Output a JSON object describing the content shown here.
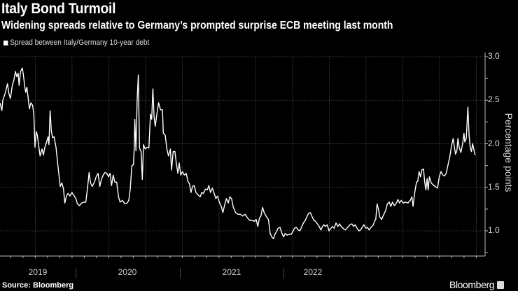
{
  "header": {
    "title": "Italy Bond Turmoil",
    "subtitle": "Widening spreads relative to Germany’s prompted surprise ECB meeting last month"
  },
  "footer": {
    "source": "Source: Bloomberg",
    "brand": "Bloomberg"
  },
  "colors": {
    "background": "#000000",
    "line": "#ffffff",
    "grid": "#444444",
    "text": "#dddddd"
  },
  "chart_data": {
    "type": "line",
    "title": "Italy Bond Turmoil",
    "subtitle": "Widening spreads relative to Germany’s prompted surprise ECB meeting last month",
    "legend": [
      "Spread between Italy/Germany 10-year debt"
    ],
    "legend_placement": "top-left",
    "ylabel": "Percentage points",
    "xlabel": "",
    "ylim": [
      0.71,
      3.0
    ],
    "xlim": [
      2019.26,
      2022.56
    ],
    "y_ticks": [
      3.0,
      2.5,
      2.0,
      1.5,
      1.0
    ],
    "y_tick_labels": [
      "3.0",
      "2.5",
      "2.0",
      "1.5",
      "1.0"
    ],
    "x_tick_labels": [
      "2019",
      "2020",
      "2021",
      "2022"
    ],
    "grid": true,
    "series": [
      {
        "name": "Spread between Italy/Germany 10-year debt",
        "points": [
          [
            2019.26,
            2.47
          ],
          [
            2019.273,
            2.38
          ],
          [
            2019.279,
            2.5
          ],
          [
            2019.295,
            2.58
          ],
          [
            2019.311,
            2.69
          ],
          [
            2019.32,
            2.58
          ],
          [
            2019.331,
            2.52
          ],
          [
            2019.343,
            2.66
          ],
          [
            2019.355,
            2.74
          ],
          [
            2019.365,
            2.83
          ],
          [
            2019.374,
            2.77
          ],
          [
            2019.384,
            2.81
          ],
          [
            2019.39,
            2.67
          ],
          [
            2019.4,
            2.83
          ],
          [
            2019.412,
            2.87
          ],
          [
            2019.419,
            2.79
          ],
          [
            2019.428,
            2.66
          ],
          [
            2019.435,
            2.59
          ],
          [
            2019.443,
            2.65
          ],
          [
            2019.45,
            2.55
          ],
          [
            2019.46,
            2.4
          ],
          [
            2019.47,
            2.47
          ],
          [
            2019.482,
            2.44
          ],
          [
            2019.49,
            2.34
          ],
          [
            2019.498,
            1.96
          ],
          [
            2019.506,
            2.14
          ],
          [
            2019.514,
            2.1
          ],
          [
            2019.522,
            1.99
          ],
          [
            2019.533,
            1.86
          ],
          [
            2019.546,
            1.94
          ],
          [
            2019.555,
            1.87
          ],
          [
            2019.565,
            1.96
          ],
          [
            2019.577,
            2.02
          ],
          [
            2019.587,
            2.08
          ],
          [
            2019.593,
            1.99
          ],
          [
            2019.601,
            2.38
          ],
          [
            2019.609,
            2.15
          ],
          [
            2019.617,
            2.07
          ],
          [
            2019.628,
            2.08
          ],
          [
            2019.641,
            1.96
          ],
          [
            2019.649,
            1.83
          ],
          [
            2019.657,
            1.7
          ],
          [
            2019.67,
            1.51
          ],
          [
            2019.681,
            1.55
          ],
          [
            2019.692,
            1.48
          ],
          [
            2019.701,
            1.32
          ],
          [
            2019.712,
            1.4
          ],
          [
            2019.723,
            1.43
          ],
          [
            2019.736,
            1.4
          ],
          [
            2019.749,
            1.44
          ],
          [
            2019.765,
            1.4
          ],
          [
            2019.776,
            1.37
          ],
          [
            2019.787,
            1.31
          ],
          [
            2019.8,
            1.29
          ],
          [
            2019.816,
            1.32
          ],
          [
            2019.831,
            1.33
          ],
          [
            2019.844,
            1.33
          ],
          [
            2019.855,
            1.49
          ],
          [
            2019.866,
            1.67
          ],
          [
            2019.876,
            1.55
          ],
          [
            2019.887,
            1.51
          ],
          [
            2019.903,
            1.56
          ],
          [
            2019.914,
            1.62
          ],
          [
            2019.927,
            1.66
          ],
          [
            2019.939,
            1.51
          ],
          [
            2019.95,
            1.59
          ],
          [
            2019.962,
            1.64
          ],
          [
            2019.974,
            1.67
          ],
          [
            2019.987,
            1.66
          ],
          [
            2019.998,
            1.62
          ],
          [
            2020.009,
            1.66
          ],
          [
            2020.019,
            1.52
          ],
          [
            2020.03,
            1.64
          ],
          [
            2020.041,
            1.56
          ],
          [
            2020.054,
            1.56
          ],
          [
            2020.066,
            1.39
          ],
          [
            2020.077,
            1.33
          ],
          [
            2020.093,
            1.35
          ],
          [
            2020.109,
            1.31
          ],
          [
            2020.125,
            1.32
          ],
          [
            2020.136,
            1.35
          ],
          [
            2020.146,
            1.48
          ],
          [
            2020.157,
            1.75
          ],
          [
            2020.168,
            1.76
          ],
          [
            2020.173,
            1.94
          ],
          [
            2020.177,
            2.28
          ],
          [
            2020.185,
            1.92
          ],
          [
            2020.193,
            2.5
          ],
          [
            2020.201,
            2.79
          ],
          [
            2020.209,
            1.95
          ],
          [
            2020.22,
            1.91
          ],
          [
            2020.228,
            1.59
          ],
          [
            2020.236,
            1.99
          ],
          [
            2020.247,
            1.94
          ],
          [
            2020.26,
            1.96
          ],
          [
            2020.273,
            1.95
          ],
          [
            2020.284,
            2.34
          ],
          [
            2020.292,
            2.28
          ],
          [
            2020.3,
            2.63
          ],
          [
            2020.308,
            2.31
          ],
          [
            2020.316,
            2.2
          ],
          [
            2020.327,
            2.34
          ],
          [
            2020.339,
            2.47
          ],
          [
            2020.352,
            2.39
          ],
          [
            2020.365,
            2.39
          ],
          [
            2020.371,
            2.12
          ],
          [
            2020.384,
            2.1
          ],
          [
            2020.395,
            1.94
          ],
          [
            2020.406,
            1.86
          ],
          [
            2020.419,
            1.94
          ],
          [
            2020.427,
            1.7
          ],
          [
            2020.438,
            1.91
          ],
          [
            2020.45,
            1.91
          ],
          [
            2020.459,
            1.78
          ],
          [
            2020.47,
            1.66
          ],
          [
            2020.479,
            1.78
          ],
          [
            2020.49,
            1.64
          ],
          [
            2020.501,
            1.68
          ],
          [
            2020.514,
            1.64
          ],
          [
            2020.527,
            1.66
          ],
          [
            2020.538,
            1.57
          ],
          [
            2020.549,
            1.54
          ],
          [
            2020.559,
            1.44
          ],
          [
            2020.57,
            1.51
          ],
          [
            2020.581,
            1.52
          ],
          [
            2020.593,
            1.44
          ],
          [
            2020.609,
            1.41
          ],
          [
            2020.622,
            1.39
          ],
          [
            2020.633,
            1.44
          ],
          [
            2020.644,
            1.43
          ],
          [
            2020.657,
            1.48
          ],
          [
            2020.67,
            1.47
          ],
          [
            2020.681,
            1.52
          ],
          [
            2020.692,
            1.44
          ],
          [
            2020.705,
            1.49
          ],
          [
            2020.717,
            1.43
          ],
          [
            2020.728,
            1.37
          ],
          [
            2020.74,
            1.4
          ],
          [
            2020.752,
            1.33
          ],
          [
            2020.765,
            1.28
          ],
          [
            2020.776,
            1.21
          ],
          [
            2020.787,
            1.29
          ],
          [
            2020.8,
            1.37
          ],
          [
            2020.813,
            1.32
          ],
          [
            2020.824,
            1.39
          ],
          [
            2020.835,
            1.37
          ],
          [
            2020.847,
            1.27
          ],
          [
            2020.863,
            1.21
          ],
          [
            2020.879,
            1.19
          ],
          [
            2020.895,
            1.19
          ],
          [
            2020.911,
            1.17
          ],
          [
            2020.927,
            1.19
          ],
          [
            2020.943,
            1.15
          ],
          [
            2020.959,
            1.12
          ],
          [
            2020.974,
            1.12
          ],
          [
            2020.99,
            1.11
          ],
          [
            2021.003,
            1.13
          ],
          [
            2021.014,
            1.05
          ],
          [
            2021.025,
            1.15
          ],
          [
            2021.035,
            1.17
          ],
          [
            2021.046,
            1.27
          ],
          [
            2021.057,
            1.21
          ],
          [
            2021.07,
            1.17
          ],
          [
            2021.086,
            1.13
          ],
          [
            2021.098,
            0.97
          ],
          [
            2021.109,
            0.93
          ],
          [
            2021.121,
            0.91
          ],
          [
            2021.13,
            0.96
          ],
          [
            2021.141,
            0.99
          ],
          [
            2021.152,
            1.03
          ],
          [
            2021.165,
            1.04
          ],
          [
            2021.178,
            0.97
          ],
          [
            2021.189,
            0.93
          ],
          [
            2021.2,
            0.97
          ],
          [
            2021.213,
            0.95
          ],
          [
            2021.225,
            0.96
          ],
          [
            2021.241,
            0.96
          ],
          [
            2021.252,
            0.99
          ],
          [
            2021.263,
            1.03
          ],
          [
            2021.276,
            1.04
          ],
          [
            2021.289,
            1.01
          ],
          [
            2021.3,
            1.0
          ],
          [
            2021.311,
            1.04
          ],
          [
            2021.324,
            1.09
          ],
          [
            2021.336,
            1.12
          ],
          [
            2021.347,
            1.16
          ],
          [
            2021.359,
            1.2
          ],
          [
            2021.371,
            1.21
          ],
          [
            2021.384,
            1.16
          ],
          [
            2021.395,
            1.12
          ],
          [
            2021.406,
            1.11
          ],
          [
            2021.419,
            1.08
          ],
          [
            2021.432,
            1.05
          ],
          [
            2021.443,
            1.01
          ],
          [
            2021.454,
            1.05
          ],
          [
            2021.463,
            1.07
          ],
          [
            2021.475,
            1.05
          ],
          [
            2021.486,
            1.07
          ],
          [
            2021.498,
            1.0
          ],
          [
            2021.511,
            1.03
          ],
          [
            2021.522,
            1.05
          ],
          [
            2021.533,
            1.03
          ],
          [
            2021.546,
            1.09
          ],
          [
            2021.559,
            1.05
          ],
          [
            2021.57,
            1.08
          ],
          [
            2021.581,
            1.05
          ],
          [
            2021.594,
            1.03
          ],
          [
            2021.609,
            1.01
          ],
          [
            2021.625,
            1.04
          ],
          [
            2021.641,
            1.07
          ],
          [
            2021.654,
            1.08
          ],
          [
            2021.665,
            1.05
          ],
          [
            2021.676,
            1.07
          ],
          [
            2021.689,
            1.03
          ],
          [
            2021.702,
            1.0
          ],
          [
            2021.713,
            1.01
          ],
          [
            2021.724,
            1.04
          ],
          [
            2021.736,
            1.07
          ],
          [
            2021.749,
            1.03
          ],
          [
            2021.76,
            1.04
          ],
          [
            2021.771,
            1.01
          ],
          [
            2021.784,
            1.04
          ],
          [
            2021.8,
            1.07
          ],
          [
            2021.808,
            1.11
          ],
          [
            2021.816,
            1.13
          ],
          [
            2021.825,
            1.31
          ],
          [
            2021.835,
            1.24
          ],
          [
            2021.844,
            1.16
          ],
          [
            2021.856,
            1.13
          ],
          [
            2021.871,
            1.19
          ],
          [
            2021.883,
            1.23
          ],
          [
            2021.895,
            1.31
          ],
          [
            2021.908,
            1.33
          ],
          [
            2021.919,
            1.28
          ],
          [
            2021.93,
            1.33
          ],
          [
            2021.943,
            1.29
          ],
          [
            2021.956,
            1.32
          ],
          [
            2021.967,
            1.36
          ],
          [
            2021.978,
            1.32
          ],
          [
            2021.99,
            1.35
          ],
          [
            2022.003,
            1.32
          ],
          [
            2022.019,
            1.33
          ],
          [
            2022.035,
            1.32
          ],
          [
            2022.051,
            1.35
          ],
          [
            2022.062,
            1.39
          ],
          [
            2022.07,
            1.28
          ],
          [
            2022.078,
            1.4
          ],
          [
            2022.086,
            1.49
          ],
          [
            2022.094,
            1.56
          ],
          [
            2022.102,
            1.57
          ],
          [
            2022.111,
            1.68
          ],
          [
            2022.121,
            1.62
          ],
          [
            2022.13,
            1.7
          ],
          [
            2022.141,
            1.71
          ],
          [
            2022.149,
            1.56
          ],
          [
            2022.157,
            1.47
          ],
          [
            2022.165,
            1.6
          ],
          [
            2022.173,
            1.47
          ],
          [
            2022.181,
            1.62
          ],
          [
            2022.194,
            1.55
          ],
          [
            2022.205,
            1.53
          ],
          [
            2022.221,
            1.51
          ],
          [
            2022.236,
            1.49
          ],
          [
            2022.248,
            1.62
          ],
          [
            2022.26,
            1.68
          ],
          [
            2022.273,
            1.64
          ],
          [
            2022.284,
            1.63
          ],
          [
            2022.295,
            1.66
          ],
          [
            2022.308,
            1.76
          ],
          [
            2022.321,
            1.86
          ],
          [
            2022.332,
            1.98
          ],
          [
            2022.343,
            2.06
          ],
          [
            2022.352,
            1.95
          ],
          [
            2022.359,
            1.88
          ],
          [
            2022.368,
            1.92
          ],
          [
            2022.375,
            2.06
          ],
          [
            2022.384,
            1.96
          ],
          [
            2022.395,
            1.9
          ],
          [
            2022.406,
            1.99
          ],
          [
            2022.416,
            2.12
          ],
          [
            2022.422,
            2.02
          ],
          [
            2022.432,
            2.06
          ],
          [
            2022.443,
            2.42
          ],
          [
            2022.451,
            2.1
          ],
          [
            2022.459,
            1.95
          ],
          [
            2022.467,
            1.91
          ],
          [
            2022.475,
            2.0
          ],
          [
            2022.483,
            1.94
          ],
          [
            2022.49,
            1.88
          ],
          [
            2022.495,
            1.87
          ]
        ]
      }
    ]
  }
}
